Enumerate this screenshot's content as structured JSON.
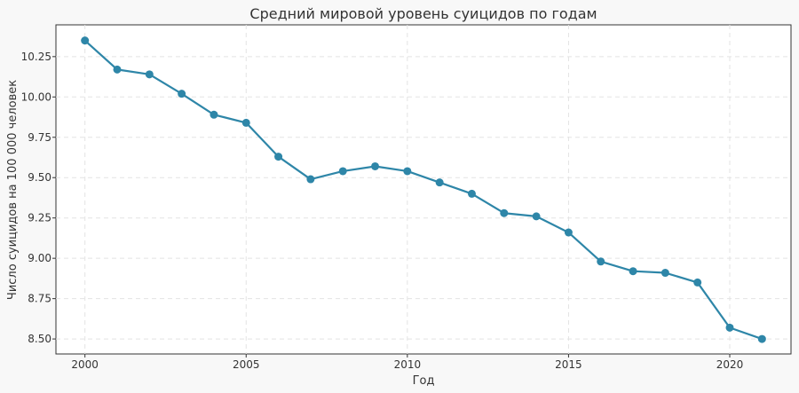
{
  "chart_data": {
    "type": "line",
    "title": "Средний мировой уровень суицидов по годам",
    "xlabel": "Год",
    "ylabel": "Число суицидов на 100 000 человек",
    "x": [
      2000,
      2001,
      2002,
      2003,
      2004,
      2005,
      2006,
      2007,
      2008,
      2009,
      2010,
      2011,
      2012,
      2013,
      2014,
      2015,
      2016,
      2017,
      2018,
      2019,
      2020,
      2021
    ],
    "series": [
      {
        "values": [
          10.35,
          10.17,
          10.14,
          10.02,
          9.89,
          9.84,
          9.63,
          9.49,
          9.54,
          9.57,
          9.54,
          9.47,
          9.4,
          9.28,
          9.26,
          9.16,
          8.98,
          8.92,
          8.91,
          8.85,
          8.57,
          8.5
        ],
        "color": "#2e86a8"
      }
    ],
    "xlim": [
      1999.1,
      2021.9
    ],
    "ylim": [
      8.407,
      10.447
    ],
    "xticks": [
      "2000",
      "2005",
      "2010",
      "2015",
      "2020"
    ],
    "yticks": [
      "8.50",
      "8.75",
      "9.00",
      "9.25",
      "9.50",
      "9.75",
      "10.00",
      "10.25"
    ],
    "grid": true,
    "marker": "circle"
  }
}
